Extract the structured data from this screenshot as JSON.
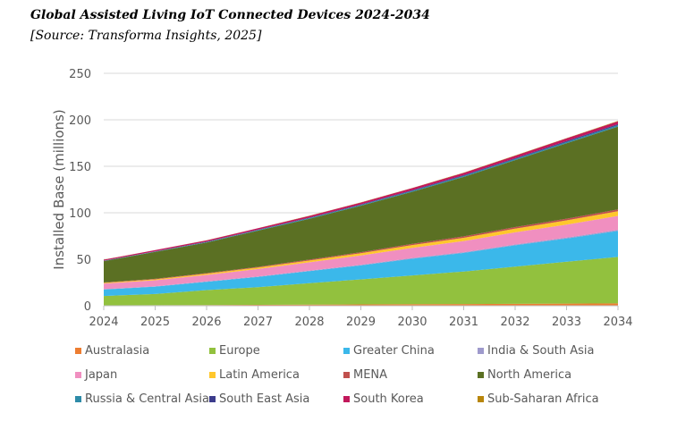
{
  "header": {
    "title": "Global Assisted Living IoT Connected Devices 2024-2034",
    "source": "[Source: Transforma Insights, 2025]"
  },
  "chart_data": {
    "type": "area",
    "stacked": true,
    "title": "Global Assisted Living IoT Connected Devices 2024-2034",
    "subtitle": "[Source: Transforma Insights, 2025]",
    "xlabel": "",
    "ylabel": "Installed Base (millions)",
    "ylim": [
      0,
      250
    ],
    "yticks": [
      0,
      50,
      100,
      150,
      200,
      250
    ],
    "grid": true,
    "legend_position": "bottom",
    "x": [
      "2024",
      "2025",
      "2026",
      "2027",
      "2028",
      "2029",
      "2030",
      "2031",
      "2032",
      "2033",
      "2034"
    ],
    "series": [
      {
        "name": "Australasia",
        "color": "#ED7D31",
        "values": [
          0.5,
          0.6,
          0.8,
          1.0,
          1.2,
          1.4,
          1.6,
          1.8,
          2.0,
          2.3,
          2.5
        ]
      },
      {
        "name": "Europe",
        "color": "#92C13E",
        "values": [
          10,
          12,
          16,
          19,
          23,
          27,
          31,
          35,
          40,
          45,
          50
        ]
      },
      {
        "name": "Greater China",
        "color": "#3BB8EA",
        "values": [
          7,
          8,
          9,
          11,
          13,
          15,
          18,
          20,
          23,
          25,
          28
        ]
      },
      {
        "name": "India & South Asia",
        "color": "#9E9ACC",
        "values": [
          0.3,
          0.3,
          0.4,
          0.5,
          0.5,
          0.6,
          0.7,
          0.8,
          0.9,
          1.0,
          1.1
        ]
      },
      {
        "name": "Japan",
        "color": "#F08FC0",
        "values": [
          6,
          6.5,
          7,
          8,
          9,
          10,
          11,
          12,
          13,
          14,
          15
        ]
      },
      {
        "name": "Latin America",
        "color": "#FFC72C",
        "values": [
          0.8,
          1.0,
          1.3,
          1.6,
          2.0,
          2.5,
          3.0,
          3.5,
          4.0,
          4.5,
          5.0
        ]
      },
      {
        "name": "MENA",
        "color": "#C0504D",
        "values": [
          0.4,
          0.5,
          0.6,
          0.7,
          0.9,
          1.1,
          1.3,
          1.5,
          1.7,
          1.9,
          2.1
        ]
      },
      {
        "name": "North America",
        "color": "#5B7023",
        "values": [
          23,
          29,
          33,
          39,
          44,
          50,
          56,
          64,
          72,
          81,
          89
        ]
      },
      {
        "name": "Russia & Central Asia",
        "color": "#2E8BA8",
        "values": [
          0.3,
          0.4,
          0.5,
          0.6,
          0.7,
          0.8,
          1.0,
          1.1,
          1.2,
          1.4,
          1.5
        ]
      },
      {
        "name": "South East Asia",
        "color": "#3C3C8C",
        "values": [
          0.2,
          0.3,
          0.3,
          0.4,
          0.5,
          0.6,
          0.7,
          0.8,
          0.9,
          1.0,
          1.1
        ]
      },
      {
        "name": "South Korea",
        "color": "#C2185B",
        "values": [
          1.0,
          1.2,
          1.4,
          1.6,
          1.8,
          2.0,
          2.2,
          2.4,
          2.6,
          2.9,
          3.1
        ]
      },
      {
        "name": "Sub-Saharan Africa",
        "color": "#B8860B",
        "values": [
          0.1,
          0.1,
          0.1,
          0.1,
          0.2,
          0.2,
          0.2,
          0.3,
          0.3,
          0.3,
          0.4
        ]
      }
    ]
  }
}
